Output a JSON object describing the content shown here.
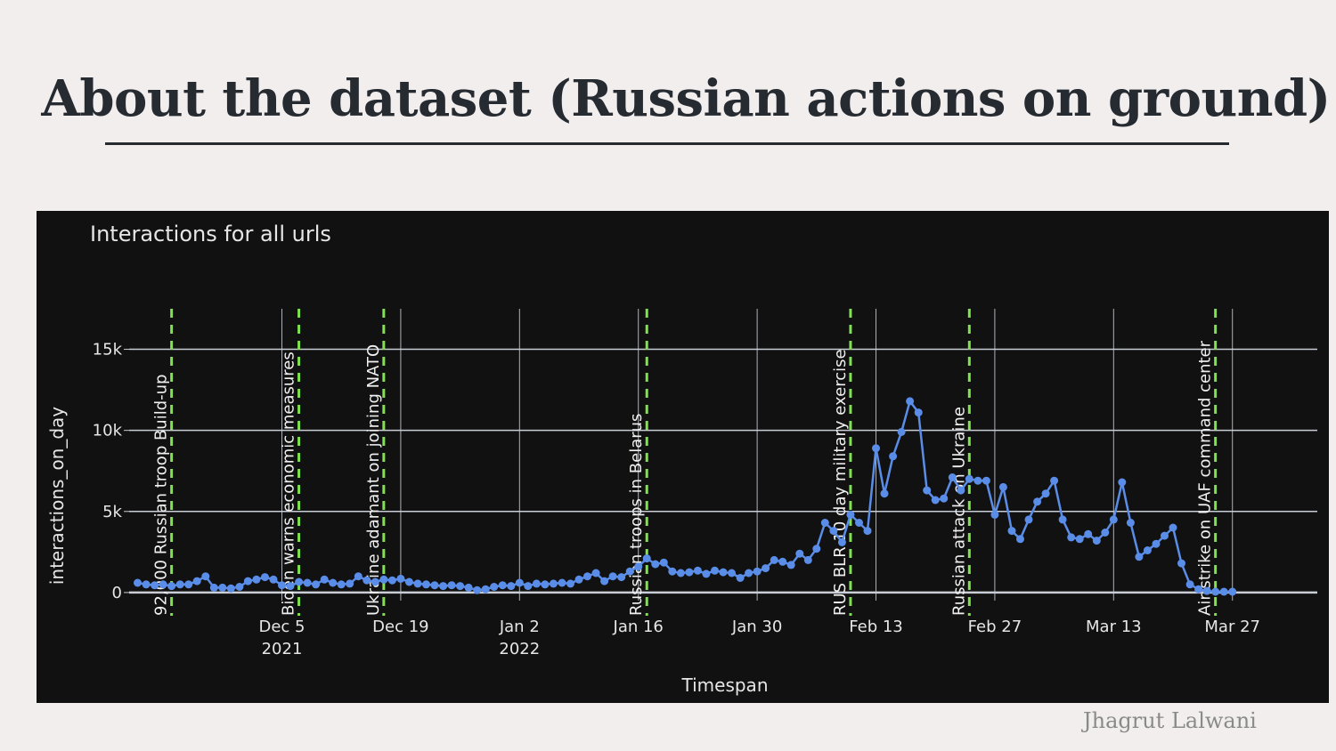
{
  "slide": {
    "title": "About the dataset (Russian actions on ground)",
    "author": "Jhagrut Lalwani"
  },
  "colors": {
    "background": "#f2eeee",
    "chart_bg": "#111111",
    "line": "#5a8de8",
    "event_line": "#7ee34d",
    "grid": "#c9ced6"
  },
  "chart_data": {
    "type": "line",
    "title": "Interactions for all urls",
    "xlabel": "Timespan",
    "ylabel": "interactions_on_day",
    "x_ticks": [
      {
        "date": "2021-12-05",
        "label": "Dec 5",
        "sublabel": "2021"
      },
      {
        "date": "2021-12-19",
        "label": "Dec 19",
        "sublabel": ""
      },
      {
        "date": "2022-01-02",
        "label": "Jan 2",
        "sublabel": "2022"
      },
      {
        "date": "2022-01-16",
        "label": "Jan 16",
        "sublabel": ""
      },
      {
        "date": "2022-01-30",
        "label": "Jan 30",
        "sublabel": ""
      },
      {
        "date": "2022-02-13",
        "label": "Feb 13",
        "sublabel": ""
      },
      {
        "date": "2022-02-27",
        "label": "Feb 27",
        "sublabel": ""
      },
      {
        "date": "2022-03-13",
        "label": "Mar 13",
        "sublabel": ""
      },
      {
        "date": "2022-03-27",
        "label": "Mar 27",
        "sublabel": ""
      }
    ],
    "y_ticks": [
      {
        "value": 0,
        "label": "0"
      },
      {
        "value": 5000,
        "label": "5k"
      },
      {
        "value": 10000,
        "label": "10k"
      },
      {
        "value": 15000,
        "label": "15k"
      }
    ],
    "xlim": [
      "2021-11-17",
      "2022-04-06"
    ],
    "ylim": [
      -500,
      17500
    ],
    "start_date": "2021-11-18",
    "values": [
      600,
      500,
      450,
      500,
      400,
      500,
      500,
      700,
      1000,
      300,
      300,
      250,
      350,
      700,
      800,
      950,
      800,
      450,
      400,
      650,
      600,
      500,
      800,
      600,
      500,
      550,
      1000,
      750,
      650,
      800,
      750,
      850,
      650,
      550,
      500,
      450,
      400,
      450,
      400,
      300,
      150,
      200,
      350,
      450,
      400,
      600,
      400,
      550,
      500,
      550,
      600,
      550,
      800,
      1000,
      1200,
      700,
      1000,
      950,
      1300,
      1600,
      2100,
      1750,
      1850,
      1300,
      1200,
      1250,
      1350,
      1150,
      1350,
      1250,
      1200,
      900,
      1200,
      1300,
      1500,
      2000,
      1900,
      1700,
      2400,
      2000,
      2700,
      4300,
      3800,
      3100,
      4800,
      4300,
      3800,
      8900,
      6100,
      8400,
      9900,
      11800,
      11100,
      6300,
      5700,
      5800,
      7100,
      6300,
      7000,
      6900,
      6900,
      4800,
      6500,
      3800,
      3300,
      4500,
      5600,
      6100,
      6900,
      4500,
      3400,
      3300,
      3600,
      3200,
      3700,
      4500,
      6800,
      4300,
      2200,
      2600,
      3000,
      3500,
      4000,
      1800,
      500,
      200,
      100,
      50,
      50,
      50
    ]
  },
  "events": [
    {
      "date": "2021-11-22",
      "label": "92,000 Russian troop Build-up"
    },
    {
      "date": "2021-12-07",
      "label": "Biden warns economic measures"
    },
    {
      "date": "2021-12-17",
      "label": "Ukraine adamant on joining NATO"
    },
    {
      "date": "2022-01-17",
      "label": "Russian troops in Belarus"
    },
    {
      "date": "2022-02-10",
      "label": "RUS BLR 10 day military exercise"
    },
    {
      "date": "2022-02-24",
      "label": "Russian attack on Ukraine"
    },
    {
      "date": "2022-03-25",
      "label": "Air strike on UAF command center"
    }
  ]
}
